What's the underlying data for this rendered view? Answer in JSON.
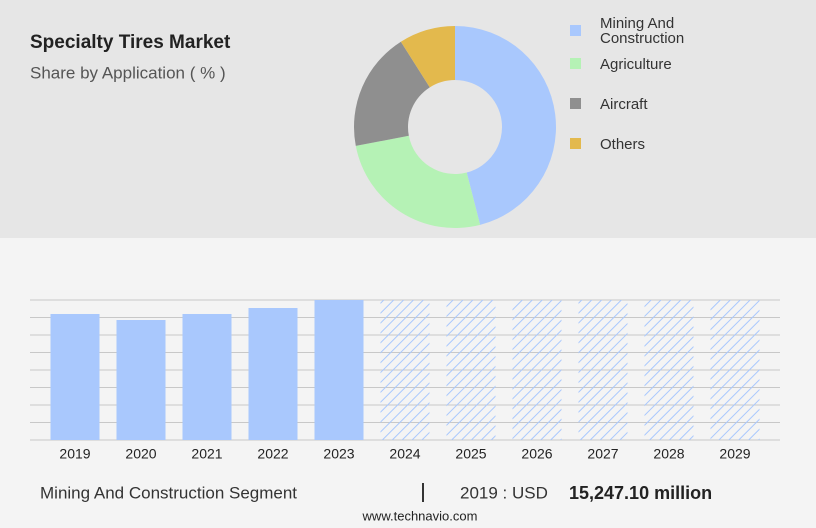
{
  "chart_data": [
    {
      "type": "pie",
      "title": "Specialty Tires Market",
      "subtitle": "Share by Application ( % )",
      "categories": [
        "Mining And Construction",
        "Agriculture",
        "Aircraft",
        "Others"
      ],
      "values": [
        46,
        26,
        19,
        9
      ],
      "colors": [
        "#a9c8fd",
        "#b5f2b5",
        "#8f8f8f",
        "#e3b94d"
      ],
      "legend": "right"
    },
    {
      "type": "bar",
      "categories": [
        "2019",
        "2020",
        "2021",
        "2022",
        "2023",
        "2024",
        "2025",
        "2026",
        "2027",
        "2028",
        "2029"
      ],
      "values": [
        15247.1,
        14521,
        15247.1,
        15973,
        16940,
        null,
        null,
        null,
        null,
        null,
        null
      ],
      "color": "#a9c8fd",
      "ylim": [
        0,
        16940
      ],
      "yticks": [
        0,
        2117.5,
        4235,
        6352.5,
        8470,
        10587.5,
        12705,
        14822.5,
        16940
      ],
      "grid": true,
      "tick_labels": false
    }
  ],
  "footer": {
    "segment": "Mining And Construction Segment",
    "label": "2019 : USD",
    "value": "15,247.10 million"
  },
  "source": "www.technavio.com"
}
